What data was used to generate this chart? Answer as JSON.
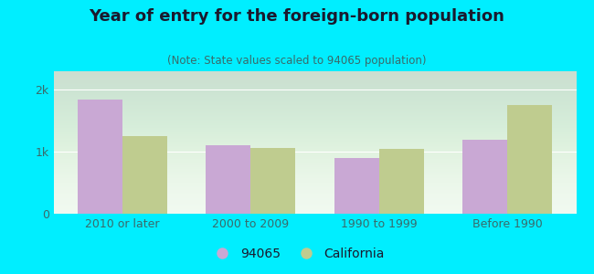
{
  "title": "Year of entry for the foreign-born population",
  "subtitle": "(Note: State values scaled to 94065 population)",
  "categories": [
    "2010 or later",
    "2000 to 2009",
    "1990 to 1999",
    "Before 1990"
  ],
  "values_94065": [
    1850,
    1100,
    900,
    1200
  ],
  "values_california": [
    1260,
    1060,
    1040,
    1760
  ],
  "bar_color_94065": "#c9a8d4",
  "bar_color_california": "#bfcc8f",
  "background_outer": "#00eeff",
  "background_inner_top": "#d8eeda",
  "background_inner_bottom": "#f0f9f0",
  "ylim": [
    0,
    2300
  ],
  "yticks": [
    0,
    1000,
    2000
  ],
  "ytick_labels": [
    "0",
    "1k",
    "2k"
  ],
  "legend_label_1": "94065",
  "legend_label_2": "California",
  "bar_width": 0.35,
  "title_fontsize": 13,
  "subtitle_fontsize": 8.5,
  "axis_label_fontsize": 9,
  "tick_fontsize": 9,
  "title_color": "#1a1a2e",
  "subtitle_color": "#3a6a6a",
  "tick_color": "#3a6a6a"
}
